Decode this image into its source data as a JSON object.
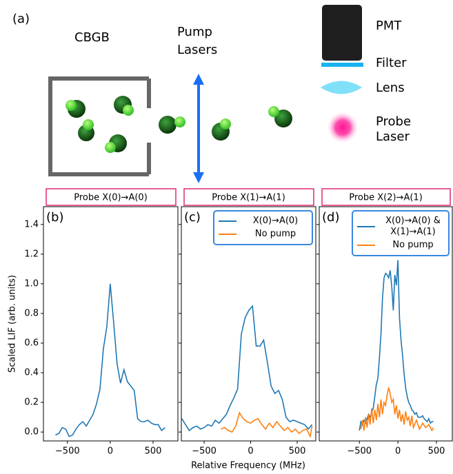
{
  "figure": {
    "panel_label": "(a)",
    "source_label": "CBGB",
    "pump_label": [
      "Pump",
      "Lasers"
    ],
    "detector_labels": {
      "pmt": "PMT",
      "filter": "Filter",
      "lens": "Lens",
      "probe": [
        "Probe",
        "Laser"
      ]
    },
    "x_label": "Relative Frequency (MHz)",
    "y_label": "Scaled LIF (arb. units)"
  },
  "chart_data": [
    {
      "type": "line",
      "probe": "Probe X(0)→A(0)",
      "panel_label": "(b)",
      "xlim": [
        -780,
        790
      ],
      "ylim": [
        -0.06,
        1.52
      ],
      "xticks": [
        {
          "value": -500,
          "label": "−500"
        },
        0,
        {
          "value": 500,
          "label": "500"
        }
      ],
      "yticks": [
        {
          "value": 0,
          "label": "0.0"
        },
        0.2,
        0.4,
        0.6,
        0.8,
        {
          "value": 1,
          "label": "1.0"
        },
        1.2,
        1.4
      ],
      "series": [
        {
          "color": "#1f77b4",
          "x": [
            -640,
            -600,
            -560,
            -520,
            -480,
            -440,
            -400,
            -360,
            -320,
            -280,
            -240,
            -200,
            -160,
            -120,
            -80,
            -40,
            0,
            40,
            80,
            120,
            160,
            200,
            240,
            280,
            320,
            360,
            400,
            440,
            480,
            520,
            560,
            600,
            640
          ],
          "values": [
            -0.02,
            -0.01,
            0.03,
            0.02,
            -0.03,
            -0.02,
            0.02,
            0.05,
            0.07,
            0.04,
            0.08,
            0.12,
            0.19,
            0.29,
            0.56,
            0.71,
            1.0,
            0.74,
            0.46,
            0.33,
            0.42,
            0.34,
            0.31,
            0.28,
            0.09,
            0.07,
            0.07,
            0.08,
            0.06,
            0.05,
            0.05,
            0.01,
            0.03
          ]
        }
      ]
    },
    {
      "type": "line",
      "probe": "Probe X(1)→A(1)",
      "panel_label": "(c)",
      "xlim": [
        -745,
        700
      ],
      "ylim": [
        -0.06,
        1.52
      ],
      "legend": "upper right",
      "xticks": [
        {
          "value": -500,
          "label": "−500"
        },
        0,
        {
          "value": 500,
          "label": "500"
        }
      ],
      "series": [
        {
          "name": "X(0)→A(0)",
          "color": "#1f77b4",
          "x": [
            -740,
            -700,
            -660,
            -620,
            -580,
            -540,
            -500,
            -460,
            -420,
            -380,
            -340,
            -300,
            -260,
            -220,
            -180,
            -140,
            -100,
            -60,
            -20,
            20,
            60,
            100,
            140,
            180,
            220,
            260,
            300,
            340,
            380,
            420,
            460,
            500,
            540,
            580,
            620,
            660
          ],
          "values": [
            0.09,
            0.05,
            0.01,
            0.03,
            0.04,
            0.02,
            0.03,
            0.05,
            0.04,
            0.08,
            0.06,
            0.09,
            0.12,
            0.18,
            0.23,
            0.29,
            0.66,
            0.77,
            0.82,
            0.85,
            0.58,
            0.58,
            0.62,
            0.47,
            0.31,
            0.26,
            0.28,
            0.22,
            0.1,
            0.07,
            0.08,
            0.07,
            0.06,
            0.05,
            0.02,
            0.05
          ]
        },
        {
          "name": "No pump",
          "color": "#ff7f0e",
          "x": [
            -320,
            -280,
            -240,
            -200,
            -160,
            -120,
            -80,
            -40,
            0,
            40,
            80,
            120,
            160,
            200,
            240,
            280,
            320,
            360,
            400,
            440,
            480,
            520,
            560,
            600,
            640,
            660
          ],
          "values": [
            0.02,
            0.03,
            0.01,
            0.0,
            0.04,
            0.13,
            0.09,
            0.07,
            0.06,
            0.08,
            0.09,
            0.05,
            0.02,
            0.06,
            0.03,
            0.07,
            0.04,
            0.01,
            0.03,
            0.0,
            0.02,
            -0.01,
            0.01,
            0.02,
            -0.03,
            0.04
          ]
        }
      ]
    },
    {
      "type": "line",
      "probe": "Probe X(2)→A(1)",
      "panel_label": "(d)",
      "xlim": [
        -1020,
        705
      ],
      "ylim": [
        -0.06,
        1.52
      ],
      "legend": "upper right",
      "xticks": [
        {
          "value": -500,
          "label": "−500"
        },
        0,
        {
          "value": 500,
          "label": "500"
        }
      ],
      "series": [
        {
          "name": "X(0)→A(0) & X(1)→A(1)",
          "color": "#1f77b4",
          "x": [
            -500,
            -480,
            -460,
            -440,
            -420,
            -400,
            -380,
            -360,
            -340,
            -320,
            -300,
            -280,
            -260,
            -240,
            -220,
            -200,
            -180,
            -160,
            -140,
            -120,
            -100,
            -80,
            -60,
            -40,
            -20,
            0,
            20,
            40,
            60,
            80,
            100,
            120,
            140,
            160,
            180,
            200,
            220,
            240,
            260,
            280,
            300,
            320,
            340,
            360,
            380,
            400,
            420,
            440,
            460
          ],
          "values": [
            0.01,
            0.07,
            0.05,
            0.08,
            0.06,
            0.09,
            0.12,
            0.1,
            0.13,
            0.16,
            0.24,
            0.32,
            0.36,
            0.5,
            0.66,
            0.9,
            1.04,
            1.07,
            1.06,
            1.04,
            1.09,
            0.98,
            0.82,
            1.06,
            0.99,
            1.16,
            0.77,
            0.62,
            0.52,
            0.39,
            0.3,
            0.24,
            0.2,
            0.18,
            0.15,
            0.14,
            0.12,
            0.13,
            0.1,
            0.1,
            0.1,
            0.11,
            0.09,
            0.08,
            0.07,
            0.09,
            0.06,
            0.07,
            0.07
          ]
        },
        {
          "name": "No pump",
          "color": "#ff7f0e",
          "x": [
            -480,
            -460,
            -440,
            -420,
            -400,
            -380,
            -360,
            -340,
            -320,
            -300,
            -280,
            -260,
            -240,
            -220,
            -200,
            -180,
            -160,
            -140,
            -120,
            -100,
            -80,
            -60,
            -40,
            -20,
            0,
            20,
            40,
            60,
            80,
            100,
            120,
            140,
            160,
            180,
            200,
            240,
            280,
            320,
            360,
            400,
            440,
            460
          ],
          "values": [
            0.02,
            0.08,
            0.01,
            0.1,
            0.03,
            0.12,
            0.05,
            0.16,
            0.06,
            0.15,
            0.08,
            0.19,
            0.1,
            0.22,
            0.12,
            0.2,
            0.18,
            0.25,
            0.3,
            0.26,
            0.2,
            0.22,
            0.12,
            0.18,
            0.09,
            0.15,
            0.07,
            0.12,
            0.05,
            0.14,
            0.08,
            0.1,
            0.04,
            0.11,
            0.03,
            0.08,
            0.02,
            0.06,
            0.03,
            0.05,
            0.01,
            0.03
          ]
        }
      ]
    }
  ]
}
